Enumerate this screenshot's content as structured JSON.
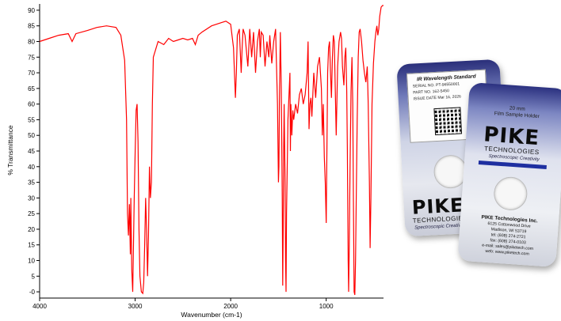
{
  "chart_data": {
    "type": "line",
    "title": "",
    "xlabel": "Wavenumber (cm-1)",
    "ylabel": "% Transmittance",
    "xlim": [
      4000,
      400
    ],
    "x_inverted": true,
    "ylim": [
      -2,
      92
    ],
    "xticks": [
      4000,
      3000,
      2000,
      1000
    ],
    "yticks": [
      0,
      5,
      10,
      15,
      20,
      25,
      30,
      35,
      40,
      45,
      50,
      55,
      60,
      65,
      70,
      75,
      80,
      85,
      90
    ],
    "ytick_labels": [
      "-0",
      "5",
      "10",
      "15",
      "20",
      "25",
      "30",
      "35",
      "40",
      "45",
      "50",
      "55",
      "60",
      "65",
      "70",
      "75",
      "80",
      "85",
      "90"
    ],
    "grid": false,
    "line_color": "#ff0000",
    "series": [
      {
        "values": [
          [
            4000,
            80
          ],
          [
            3900,
            81
          ],
          [
            3800,
            82
          ],
          [
            3700,
            82.5
          ],
          [
            3660,
            80
          ],
          [
            3620,
            82.5
          ],
          [
            3500,
            83.5
          ],
          [
            3400,
            84.5
          ],
          [
            3300,
            85
          ],
          [
            3200,
            84.5
          ],
          [
            3150,
            82
          ],
          [
            3110,
            74
          ],
          [
            3090,
            55
          ],
          [
            3080,
            25
          ],
          [
            3070,
            18
          ],
          [
            3060,
            28
          ],
          [
            3050,
            12
          ],
          [
            3045,
            30
          ],
          [
            3035,
            7
          ],
          [
            3025,
            0
          ],
          [
            3010,
            30
          ],
          [
            3000,
            45
          ],
          [
            2990,
            58
          ],
          [
            2980,
            60
          ],
          [
            2970,
            48
          ],
          [
            2960,
            20
          ],
          [
            2950,
            5
          ],
          [
            2935,
            0
          ],
          [
            2920,
            -0.5
          ],
          [
            2910,
            3
          ],
          [
            2900,
            15
          ],
          [
            2890,
            30
          ],
          [
            2880,
            20
          ],
          [
            2870,
            5
          ],
          [
            2860,
            18
          ],
          [
            2850,
            40
          ],
          [
            2840,
            30
          ],
          [
            2830,
            35
          ],
          [
            2820,
            60
          ],
          [
            2810,
            75
          ],
          [
            2760,
            80
          ],
          [
            2700,
            79
          ],
          [
            2650,
            81
          ],
          [
            2600,
            80
          ],
          [
            2550,
            80.5
          ],
          [
            2500,
            81
          ],
          [
            2450,
            80.5
          ],
          [
            2400,
            81
          ],
          [
            2370,
            79
          ],
          [
            2340,
            82
          ],
          [
            2300,
            83
          ],
          [
            2200,
            85
          ],
          [
            2100,
            86
          ],
          [
            2050,
            86.5
          ],
          [
            2000,
            85.5
          ],
          [
            1970,
            78
          ],
          [
            1950,
            62
          ],
          [
            1940,
            70
          ],
          [
            1930,
            82
          ],
          [
            1910,
            84
          ],
          [
            1890,
            70
          ],
          [
            1880,
            78
          ],
          [
            1870,
            84
          ],
          [
            1850,
            82
          ],
          [
            1820,
            72
          ],
          [
            1800,
            84
          ],
          [
            1780,
            75
          ],
          [
            1760,
            83
          ],
          [
            1740,
            70
          ],
          [
            1720,
            80
          ],
          [
            1700,
            84
          ],
          [
            1690,
            75
          ],
          [
            1680,
            83
          ],
          [
            1660,
            82
          ],
          [
            1640,
            72
          ],
          [
            1620,
            80
          ],
          [
            1600,
            75
          ],
          [
            1590,
            82
          ],
          [
            1570,
            73
          ],
          [
            1550,
            80
          ],
          [
            1530,
            84
          ],
          [
            1510,
            60
          ],
          [
            1500,
            35
          ],
          [
            1495,
            40
          ],
          [
            1490,
            60
          ],
          [
            1480,
            83
          ],
          [
            1470,
            65
          ],
          [
            1460,
            30
          ],
          [
            1455,
            2
          ],
          [
            1450,
            20
          ],
          [
            1445,
            45
          ],
          [
            1440,
            60
          ],
          [
            1430,
            35
          ],
          [
            1425,
            10
          ],
          [
            1420,
            0
          ],
          [
            1415,
            25
          ],
          [
            1400,
            55
          ],
          [
            1380,
            70
          ],
          [
            1375,
            45
          ],
          [
            1370,
            60
          ],
          [
            1360,
            50
          ],
          [
            1350,
            58
          ],
          [
            1340,
            55
          ],
          [
            1320,
            60
          ],
          [
            1300,
            57
          ],
          [
            1280,
            63
          ],
          [
            1260,
            65
          ],
          [
            1240,
            60
          ],
          [
            1220,
            63
          ],
          [
            1200,
            70
          ],
          [
            1190,
            80
          ],
          [
            1180,
            52
          ],
          [
            1170,
            60
          ],
          [
            1160,
            62
          ],
          [
            1150,
            56
          ],
          [
            1130,
            70
          ],
          [
            1110,
            62
          ],
          [
            1090,
            72
          ],
          [
            1070,
            75
          ],
          [
            1050,
            65
          ],
          [
            1040,
            50
          ],
          [
            1030,
            60
          ],
          [
            1020,
            43
          ],
          [
            1010,
            35
          ],
          [
            1000,
            22
          ],
          [
            995,
            38
          ],
          [
            985,
            70
          ],
          [
            975,
            78
          ],
          [
            965,
            80
          ],
          [
            955,
            70
          ],
          [
            945,
            62
          ],
          [
            935,
            75
          ],
          [
            925,
            82
          ],
          [
            915,
            80
          ],
          [
            905,
            65
          ],
          [
            895,
            50
          ],
          [
            880,
            72
          ],
          [
            865,
            80
          ],
          [
            850,
            83
          ],
          [
            840,
            81
          ],
          [
            830,
            72
          ],
          [
            815,
            66
          ],
          [
            805,
            75
          ],
          [
            795,
            78
          ],
          [
            785,
            64
          ],
          [
            778,
            45
          ],
          [
            770,
            10
          ],
          [
            765,
            0
          ],
          [
            758,
            15
          ],
          [
            750,
            40
          ],
          [
            740,
            64
          ],
          [
            730,
            75
          ],
          [
            722,
            60
          ],
          [
            715,
            30
          ],
          [
            708,
            0
          ],
          [
            700,
            -1
          ],
          [
            693,
            10
          ],
          [
            685,
            30
          ],
          [
            675,
            55
          ],
          [
            665,
            75
          ],
          [
            655,
            83
          ],
          [
            645,
            84
          ],
          [
            630,
            80
          ],
          [
            615,
            74
          ],
          [
            600,
            70
          ],
          [
            585,
            67
          ],
          [
            570,
            72
          ],
          [
            560,
            60
          ],
          [
            548,
            35
          ],
          [
            540,
            14
          ],
          [
            532,
            30
          ],
          [
            520,
            60
          ],
          [
            505,
            73
          ],
          [
            490,
            80
          ],
          [
            480,
            83
          ],
          [
            470,
            85
          ],
          [
            460,
            82
          ],
          [
            450,
            84
          ],
          [
            440,
            88
          ],
          [
            425,
            91
          ],
          [
            410,
            91.5
          ],
          [
            400,
            91.5
          ]
        ]
      }
    ]
  },
  "photo": {
    "back_card": {
      "label_title": "IR Wavelength Standard",
      "serial_label": "SERIAL NO.",
      "serial_value": "PT-96550001",
      "part_label": "PART NO.",
      "part_value": "162-5450",
      "issue_label": "ISSUE DATE",
      "issue_value": "Mar 16, 2026",
      "logo": "PIKE",
      "logo_sub": "TECHNOLOGIES",
      "script": "Spectroscopic Creativity"
    },
    "front_card": {
      "holder_size": "20 mm",
      "holder_name": "Film Sample Holder",
      "logo": "PIKE",
      "logo_sub": "TECHNOLOGIES",
      "script": "Spectroscopic Creativity",
      "company": "PIKE Technologies Inc.",
      "address1": "6125 Cottonwood Drive",
      "address2": "Madison, WI 53719",
      "tel": "tel: (608) 274-2721",
      "fax": "fax: (608) 274-0103",
      "email": "e-mail: sales@piketech.com",
      "web": "web: www.piketech.com"
    }
  }
}
